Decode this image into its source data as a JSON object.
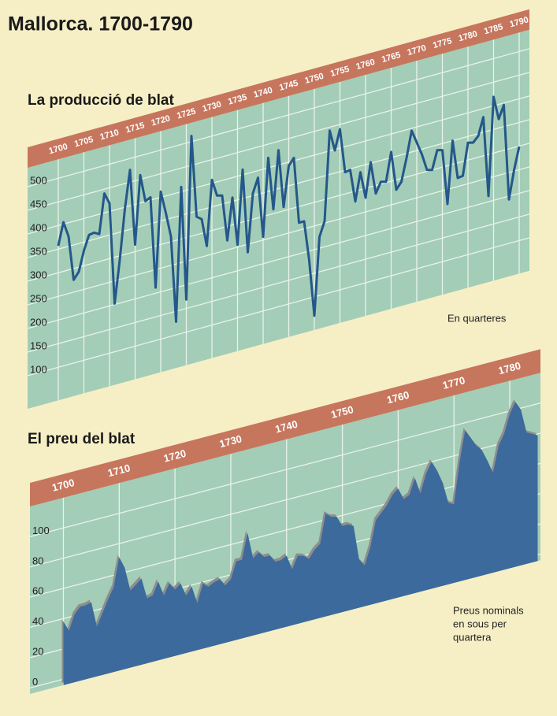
{
  "title": "Mallorca. 1700-1790",
  "chart_data": [
    {
      "type": "line",
      "title": "La producció de blat",
      "annotation": "En quarteres",
      "color": "#24578a",
      "grid": true,
      "x": [
        1700,
        1701,
        1702,
        1703,
        1704,
        1705,
        1706,
        1707,
        1708,
        1709,
        1710,
        1711,
        1712,
        1713,
        1714,
        1715,
        1716,
        1717,
        1718,
        1719,
        1720,
        1721,
        1722,
        1723,
        1724,
        1725,
        1726,
        1727,
        1728,
        1729,
        1730,
        1731,
        1732,
        1733,
        1734,
        1735,
        1736,
        1737,
        1738,
        1739,
        1740,
        1741,
        1742,
        1743,
        1744,
        1745,
        1746,
        1747,
        1748,
        1749,
        1750,
        1751,
        1752,
        1753,
        1754,
        1755,
        1756,
        1757,
        1758,
        1759,
        1760,
        1761,
        1762,
        1763,
        1764,
        1765,
        1766,
        1767,
        1768,
        1769,
        1770,
        1771,
        1772,
        1773,
        1774,
        1775,
        1776,
        1777,
        1778,
        1779,
        1780,
        1781,
        1782,
        1783,
        1784,
        1785,
        1786,
        1787,
        1788,
        1789,
        1790
      ],
      "values": [
        357,
        404,
        371,
        276,
        290,
        332,
        362,
        364,
        358,
        441,
        417,
        202,
        291,
        396,
        476,
        315,
        459,
        401,
        406,
        212,
        412,
        364,
        311,
        128,
        410,
        169,
        512,
        338,
        330,
        270,
        407,
        371,
        368,
        270,
        358,
        255,
        411,
        233,
        355,
        385,
        257,
        421,
        309,
        431,
        308,
        392,
        406,
        266,
        266,
        180,
        60,
        224,
        254,
        443,
        398,
        440,
        346,
        348,
        278,
        337,
        280,
        352,
        283,
        305,
        302,
        362,
        279,
        293,
        340,
        395,
        367,
        339,
        303,
        300,
        339,
        336,
        219,
        350,
        268,
        270,
        337,
        334,
        345,
        382,
        212,
        419,
        369,
        396,
        193,
        252,
        299
      ],
      "xlim": [
        1694,
        1792
      ],
      "xticks": [
        1700,
        1705,
        1710,
        1715,
        1720,
        1725,
        1730,
        1735,
        1740,
        1745,
        1750,
        1755,
        1760,
        1765,
        1770,
        1775,
        1780,
        1785,
        1790
      ],
      "ylim": [
        30,
        540
      ],
      "yticks": [
        100,
        150,
        200,
        250,
        300,
        350,
        400,
        450,
        500
      ]
    },
    {
      "type": "area",
      "title": "El preu del blat",
      "annotation": [
        "Preus nominals",
        "en sous per",
        "quartera"
      ],
      "color": "#3d6a9c",
      "grid": true,
      "x": [
        1700,
        1701,
        1702,
        1703,
        1704,
        1705,
        1706,
        1707,
        1708,
        1709,
        1710,
        1711,
        1712,
        1713,
        1714,
        1715,
        1716,
        1717,
        1718,
        1719,
        1720,
        1721,
        1722,
        1723,
        1724,
        1725,
        1726,
        1727,
        1728,
        1729,
        1730,
        1731,
        1732,
        1733,
        1734,
        1735,
        1736,
        1737,
        1738,
        1739,
        1740,
        1741,
        1742,
        1743,
        1744,
        1745,
        1746,
        1747,
        1748,
        1749,
        1750,
        1751,
        1752,
        1753,
        1754,
        1755,
        1756,
        1757,
        1758,
        1759,
        1760,
        1761,
        1762,
        1763,
        1764,
        1765,
        1766,
        1767,
        1768,
        1769,
        1770,
        1771,
        1772,
        1773,
        1774,
        1775,
        1776,
        1777,
        1778,
        1779,
        1780,
        1781,
        1782,
        1783,
        1784,
        1785
      ],
      "values": [
        38,
        31,
        41,
        45,
        45,
        46,
        29,
        37,
        45,
        52,
        71,
        63,
        47,
        50,
        53,
        39,
        40,
        48,
        38,
        45,
        40,
        43,
        34,
        39,
        27,
        39,
        36,
        38,
        39,
        34,
        37,
        48,
        48,
        65,
        47,
        50,
        46,
        46,
        41,
        41,
        43,
        33,
        41,
        40,
        37,
        42,
        45,
        64,
        61,
        60,
        53,
        53,
        51,
        28,
        23,
        34,
        51,
        55,
        59,
        65,
        68,
        60,
        62,
        72,
        61,
        73,
        80,
        73,
        64,
        50,
        48,
        75,
        95,
        89,
        83,
        79,
        71,
        62,
        79,
        86,
        98,
        105,
        99,
        83,
        81,
        79
      ],
      "xlim": [
        1694,
        1785.5
      ],
      "xticks": [
        1700,
        1710,
        1720,
        1730,
        1740,
        1750,
        1760,
        1770,
        1780
      ],
      "ylim": [
        -4,
        120
      ],
      "yticks": [
        0,
        20,
        40,
        60,
        80,
        100
      ]
    }
  ]
}
